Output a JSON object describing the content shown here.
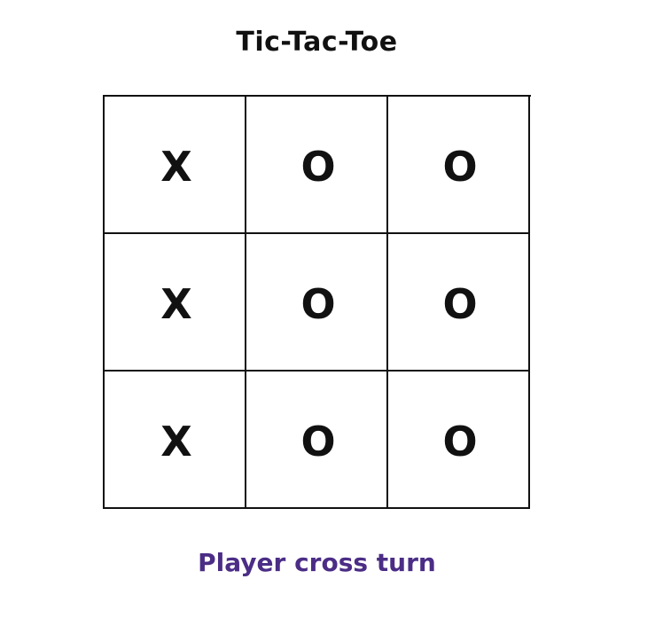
{
  "title": "Tic-Tac-Toe",
  "board": {
    "cells": [
      "X",
      "O",
      "O",
      "X",
      "O",
      "O",
      "X",
      "O",
      "O"
    ]
  },
  "status": "Player cross turn",
  "colors": {
    "ink": "#111111",
    "status": "#4b2d86",
    "background": "#ffffff"
  }
}
